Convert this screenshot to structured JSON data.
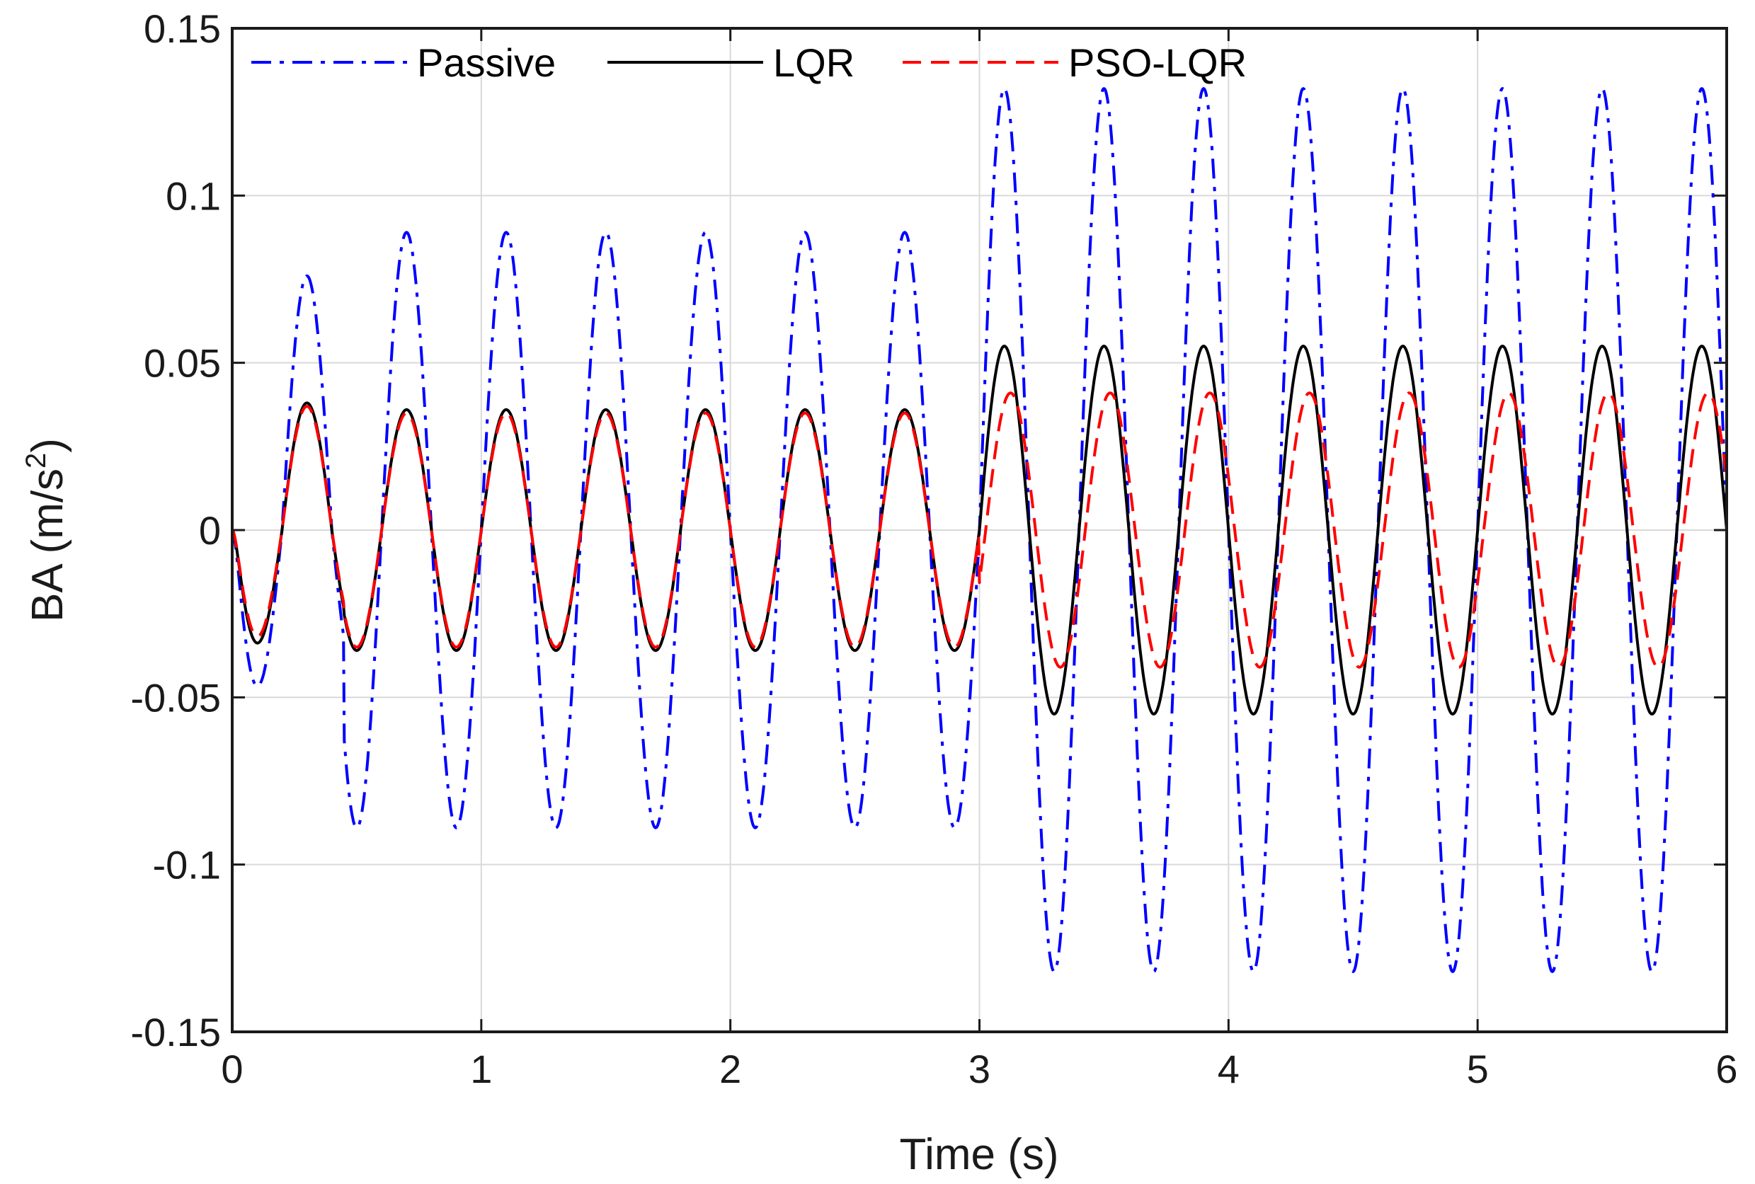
{
  "chart_data": {
    "type": "line",
    "title": "",
    "xlabel": "Time (s)",
    "ylabel": "BA (m/s",
    "ylabel_sup": "2",
    "ylabel_close": ")",
    "xlim": [
      0,
      6
    ],
    "ylim": [
      -0.15,
      0.15
    ],
    "grid": true,
    "legend_position": "top",
    "xticks": [
      0,
      1,
      2,
      3,
      4,
      5,
      6
    ],
    "xtick_labels": [
      "0",
      "1",
      "2",
      "3",
      "4",
      "5",
      "6"
    ],
    "yticks": [
      -0.15,
      -0.1,
      -0.05,
      0,
      0.05,
      0.1,
      0.15
    ],
    "ytick_labels": [
      "-0.15",
      "-0.1",
      "-0.05",
      "0",
      "0.05",
      "0.1",
      "0.15"
    ],
    "signal_frequency_hz": 2.5,
    "step_time_s": 3,
    "series": [
      {
        "name": "Passive",
        "color": "#0000ff",
        "style": "dashdot",
        "first_peak": {
          "t": 0.35,
          "value": 0.076
        },
        "first_trough": {
          "t": 0.14,
          "value": -0.047
        },
        "amplitude_before_step": 0.089,
        "amplitude_after_step": 0.132
      },
      {
        "name": "LQR",
        "color": "#000000",
        "style": "solid",
        "first_peak": {
          "t": 0.35,
          "value": 0.038
        },
        "first_trough": {
          "t": 0.14,
          "value": -0.034
        },
        "amplitude_before_step": 0.036,
        "amplitude_after_step": 0.055
      },
      {
        "name": "PSO-LQR",
        "color": "#ff0000",
        "style": "dashed",
        "first_peak": {
          "t": 0.36,
          "value": 0.037
        },
        "first_trough": {
          "t": 0.15,
          "value": -0.032
        },
        "amplitude_before_step": 0.035,
        "amplitude_after_step": 0.041,
        "phase_lag_after_step_s": 0.025
      }
    ]
  }
}
